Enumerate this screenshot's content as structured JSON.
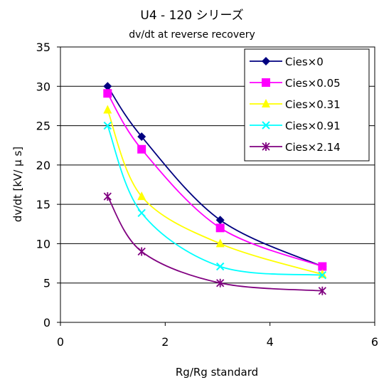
{
  "chart_data": {
    "type": "line",
    "title": "U4 - 120 シリーズ",
    "subtitle": "dv/dt at reverse recovery",
    "xlabel": "Rg/Rg standard",
    "ylabel": "dv/dt [kV/ μ s]",
    "xlim": [
      0,
      6
    ],
    "ylim": [
      0,
      35
    ],
    "xticks": [
      0,
      2,
      4,
      6
    ],
    "yticks": [
      0,
      5,
      10,
      15,
      20,
      25,
      30,
      35
    ],
    "grid": "horizontal",
    "legend_position": "top-right",
    "x": [
      0.9,
      1.55,
      3.05,
      5.0
    ],
    "series": [
      {
        "name": "Cies×0",
        "marker": "diamond",
        "color": "#000080",
        "values": [
          30,
          23.6,
          13,
          7.1
        ]
      },
      {
        "name": "Cies×0.05",
        "marker": "square",
        "color": "#ff00ff",
        "values": [
          29.1,
          22,
          12,
          7.1
        ]
      },
      {
        "name": "Cies×0.31",
        "marker": "triangle",
        "color": "#ffff00",
        "values": [
          27,
          16,
          10,
          6.1
        ]
      },
      {
        "name": "Cies×0.91",
        "marker": "x",
        "color": "#00ffff",
        "values": [
          25,
          13.9,
          7.1,
          6
        ]
      },
      {
        "name": "Cies×2.14",
        "marker": "asterisk",
        "color": "#800080",
        "values": [
          16,
          9,
          5,
          4
        ]
      }
    ]
  }
}
